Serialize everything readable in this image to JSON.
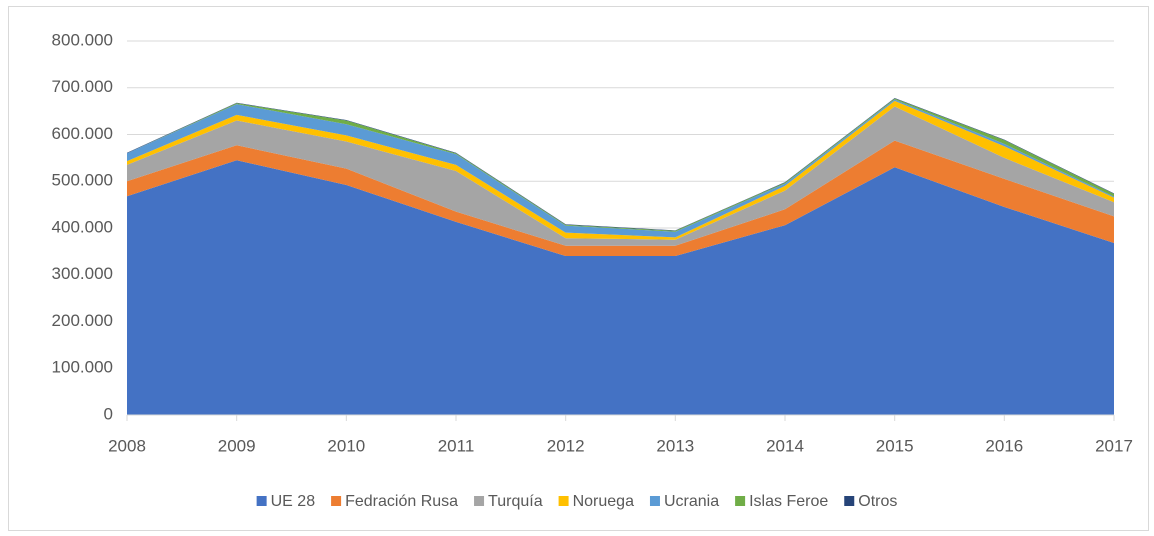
{
  "chart_data": {
    "type": "area",
    "stacked": true,
    "categories": [
      "2008",
      "2009",
      "2010",
      "2011",
      "2012",
      "2013",
      "2014",
      "2015",
      "2016",
      "2017"
    ],
    "series": [
      {
        "name": "UE 28",
        "color": "#4472c4",
        "values": [
          468000,
          545000,
          492000,
          413000,
          340000,
          340000,
          406000,
          530000,
          445000,
          368000
        ]
      },
      {
        "name": "Fedración Rusa",
        "color": "#ed7d31",
        "values": [
          32000,
          32000,
          35000,
          22000,
          22000,
          22000,
          34000,
          57000,
          60000,
          57000
        ]
      },
      {
        "name": "Turquía",
        "color": "#a5a5a5",
        "values": [
          35000,
          53000,
          58000,
          87000,
          16000,
          13000,
          40000,
          73000,
          45000,
          30000
        ]
      },
      {
        "name": "Noruega",
        "color": "#ffc000",
        "values": [
          8000,
          12000,
          13000,
          13000,
          12000,
          5000,
          10000,
          12000,
          25000,
          10000
        ]
      },
      {
        "name": "Ucrania",
        "color": "#5b9bd5",
        "values": [
          17000,
          23000,
          24000,
          23000,
          15000,
          12000,
          5000,
          3000,
          5000,
          2000
        ]
      },
      {
        "name": "Islas Feroe",
        "color": "#70ad47",
        "values": [
          0,
          2000,
          8000,
          2000,
          2000,
          2000,
          2000,
          2000,
          8000,
          6000
        ]
      },
      {
        "name": "Otros",
        "color": "#264478",
        "values": [
          1000,
          1000,
          1000,
          1000,
          1000,
          1000,
          1000,
          1000,
          1000,
          1000
        ]
      }
    ],
    "ylim": [
      0,
      800000
    ],
    "yticks": [
      0,
      {
        "value": 100000,
        "label": "100.000"
      },
      {
        "value": 200000,
        "label": "200.000"
      },
      {
        "value": 300000,
        "label": "300.000"
      },
      {
        "value": 400000,
        "label": "400.000"
      },
      {
        "value": 500000,
        "label": "500.000"
      },
      {
        "value": 600000,
        "label": "600.000"
      },
      {
        "value": 700000,
        "label": "700.000"
      },
      {
        "value": 800000,
        "label": "800.000"
      }
    ],
    "grid": true,
    "legend": "bottom"
  }
}
